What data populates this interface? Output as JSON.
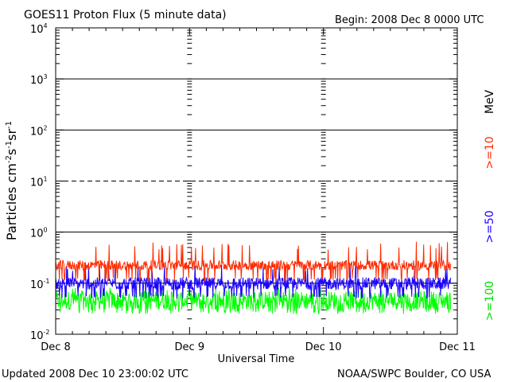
{
  "header": {
    "title": "GOES11 Proton Flux (5 minute data)",
    "begin": "Begin: 2008 Dec 8 0000 UTC"
  },
  "footer": {
    "updated": "Updated 2008 Dec 10 23:00:02 UTC",
    "source": "NOAA/SWPC Boulder, CO USA"
  },
  "chart_data": {
    "type": "line",
    "title": "GOES11 Proton Flux (5 minute data)",
    "xlabel": "Universal Time",
    "ylabel": "Particles cm⁻²s⁻¹sr⁻¹",
    "ylabel_parts": {
      "base": "Particles cm",
      "exp1": "-2",
      "s": "s",
      "exp2": "-1",
      "sr": "sr",
      "exp3": "-1"
    },
    "y_scale": "log",
    "ylim": [
      0.01,
      10000
    ],
    "y_ticks": [
      {
        "base": "10",
        "exp": "-2"
      },
      {
        "base": "10",
        "exp": "-1"
      },
      {
        "base": "10",
        "exp": "0"
      },
      {
        "base": "10",
        "exp": "1"
      },
      {
        "base": "10",
        "exp": "2"
      },
      {
        "base": "10",
        "exp": "3"
      },
      {
        "base": "10",
        "exp": "4"
      }
    ],
    "x_ticks": [
      "Dec 8",
      "Dec 9",
      "Dec 10",
      "Dec 11"
    ],
    "xlim_days": [
      0,
      3
    ],
    "unit_label": "MeV",
    "colors": {
      "ge10": "#ff2a00",
      "ge50": "#1a00ff",
      "ge100": "#00ff00"
    },
    "series": [
      {
        "name": ">=10",
        "color": "#ff2a00",
        "typical": [
          0.18,
          0.28
        ],
        "min": 0.11,
        "max": 0.65
      },
      {
        "name": ">=50",
        "color": "#1a00ff",
        "typical": [
          0.075,
          0.13
        ],
        "min": 0.05,
        "max": 0.24
      },
      {
        "name": ">=100",
        "color": "#00ff00",
        "typical": [
          0.03,
          0.07
        ],
        "min": 0.025,
        "max": 0.09
      }
    ]
  }
}
